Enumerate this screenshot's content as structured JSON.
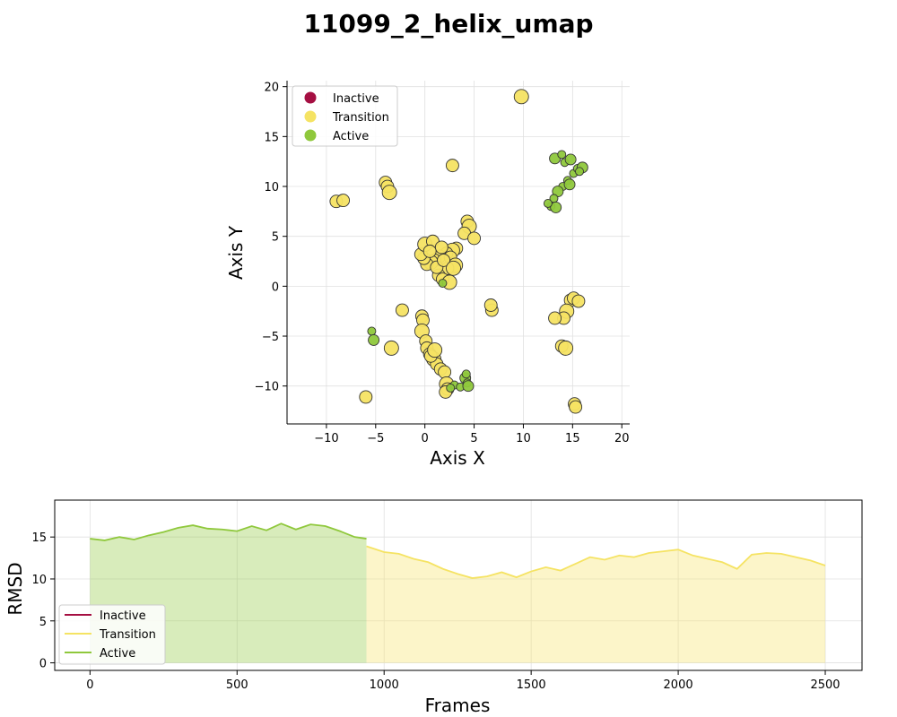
{
  "title": "11099_2_helix_umap",
  "colors": {
    "inactive": "#a50f42",
    "transition": "#f5e363",
    "active": "#8fc83c"
  },
  "chart_data": [
    {
      "type": "scatter",
      "xlabel": "Axis X",
      "ylabel": "Axis Y",
      "xlim": [
        -14,
        20.8
      ],
      "ylim": [
        -13.8,
        20.6
      ],
      "xticks": [
        -10,
        -5,
        0,
        5,
        10,
        15,
        20
      ],
      "yticks": [
        -10,
        -5,
        0,
        5,
        10,
        15,
        20
      ],
      "grid": true,
      "legend_position": "top-left",
      "legend": [
        "Inactive",
        "Transition",
        "Active"
      ],
      "series": [
        {
          "name": "Inactive",
          "points": []
        },
        {
          "name": "Transition",
          "points": [
            [
              9.8,
              19.0
            ],
            [
              2.8,
              12.1
            ],
            [
              -4,
              10.4
            ],
            [
              -3.8,
              10.0
            ],
            [
              -3.6,
              9.4
            ],
            [
              -9,
              8.5
            ],
            [
              -8.3,
              8.6
            ],
            [
              4.3,
              6.5
            ],
            [
              4.5,
              6.0
            ],
            [
              4.0,
              5.3
            ],
            [
              5.0,
              4.8
            ],
            [
              3.2,
              3.8
            ],
            [
              2.8,
              3.6
            ],
            [
              2.2,
              3.3
            ],
            [
              1.5,
              3.0
            ],
            [
              1.0,
              2.6
            ],
            [
              0.6,
              2.4
            ],
            [
              0.2,
              2.2
            ],
            [
              -0.1,
              2.8
            ],
            [
              -0.4,
              3.2
            ],
            [
              0.0,
              4.2
            ],
            [
              0.8,
              4.5
            ],
            [
              1.7,
              3.9
            ],
            [
              2.6,
              2.9
            ],
            [
              3.1,
              2.1
            ],
            [
              2.3,
              1.8
            ],
            [
              1.4,
              1.1
            ],
            [
              1.8,
              0.7
            ],
            [
              2.5,
              0.4
            ],
            [
              1.2,
              1.9
            ],
            [
              0.5,
              3.5
            ],
            [
              1.9,
              2.6
            ],
            [
              2.9,
              1.8
            ],
            [
              -2.3,
              -2.4
            ],
            [
              6.8,
              -2.4
            ],
            [
              6.7,
              -1.9
            ],
            [
              -3.4,
              -6.2
            ],
            [
              -6.0,
              -11.1
            ],
            [
              -0.3,
              -3.0
            ],
            [
              -0.2,
              -3.4
            ],
            [
              -0.3,
              -4.5
            ],
            [
              0.1,
              -5.5
            ],
            [
              0.2,
              -6.2
            ],
            [
              0.5,
              -6.8
            ],
            [
              0.9,
              -7.3
            ],
            [
              1.2,
              -7.8
            ],
            [
              1.6,
              -8.3
            ],
            [
              2.0,
              -8.6
            ],
            [
              2.2,
              -9.8
            ],
            [
              2.3,
              -10.3
            ],
            [
              2.1,
              -10.6
            ],
            [
              0.6,
              -7.0
            ],
            [
              1.0,
              -6.4
            ],
            [
              14.8,
              -1.4
            ],
            [
              15.1,
              -1.2
            ],
            [
              15.6,
              -1.5
            ],
            [
              14.4,
              -2.5
            ],
            [
              14.1,
              -3.2
            ],
            [
              13.2,
              -3.2
            ],
            [
              13.9,
              -6.0
            ],
            [
              14.3,
              -6.2
            ],
            [
              15.2,
              -11.8
            ],
            [
              15.3,
              -12.1
            ]
          ]
        },
        {
          "name": "Active",
          "points": [
            [
              13.2,
              12.8
            ],
            [
              13.9,
              13.2
            ],
            [
              14.2,
              12.4
            ],
            [
              14.8,
              12.7
            ],
            [
              15.1,
              11.3
            ],
            [
              15.5,
              11.8
            ],
            [
              16.0,
              11.9
            ],
            [
              14.5,
              10.6
            ],
            [
              14.0,
              10.0
            ],
            [
              13.5,
              9.5
            ],
            [
              13.1,
              8.8
            ],
            [
              12.8,
              8.0
            ],
            [
              13.3,
              7.9
            ],
            [
              12.5,
              8.3
            ],
            [
              15.7,
              11.5
            ],
            [
              14.7,
              10.2
            ],
            [
              1.8,
              0.3
            ],
            [
              -5.4,
              -4.5
            ],
            [
              -5.2,
              -5.4
            ],
            [
              3.0,
              -9.9
            ],
            [
              3.6,
              -10.1
            ],
            [
              4.1,
              -9.2
            ],
            [
              4.2,
              -8.8
            ],
            [
              4.3,
              -9.7
            ],
            [
              4.4,
              -10.0
            ],
            [
              2.6,
              -10.2
            ]
          ]
        }
      ]
    },
    {
      "type": "line",
      "xlabel": "Frames",
      "ylabel": "RMSD",
      "xlim": [
        -120,
        2625
      ],
      "ylim": [
        -0.9,
        19.4
      ],
      "xticks": [
        0,
        500,
        1000,
        1500,
        2000,
        2500
      ],
      "yticks": [
        0,
        5,
        10,
        15
      ],
      "grid": true,
      "legend_position": "bottom-left",
      "legend": [
        "Inactive",
        "Transition",
        "Active"
      ],
      "segments": [
        {
          "state": "Active",
          "x": [
            0,
            50,
            100,
            150,
            200,
            250,
            300,
            350,
            400,
            450,
            500,
            550,
            600,
            650,
            700,
            750,
            800,
            850,
            900,
            940
          ],
          "y": [
            14.8,
            14.6,
            15.0,
            14.7,
            15.2,
            15.6,
            16.1,
            16.4,
            16.0,
            15.9,
            15.7,
            16.3,
            15.8,
            16.6,
            15.9,
            16.5,
            16.3,
            15.7,
            15.0,
            14.8
          ]
        },
        {
          "state": "Transition",
          "x": [
            940,
            1000,
            1050,
            1100,
            1150,
            1200,
            1250,
            1300,
            1350,
            1400,
            1450,
            1500,
            1550,
            1600,
            1650,
            1700,
            1750,
            1800,
            1850,
            1900,
            1950,
            2000,
            2050,
            2100,
            2150,
            2200,
            2250,
            2300,
            2350,
            2400,
            2450,
            2500
          ],
          "y": [
            13.9,
            13.2,
            13.0,
            12.4,
            12.0,
            11.2,
            10.6,
            10.1,
            10.3,
            10.8,
            10.2,
            10.9,
            11.4,
            11.0,
            11.8,
            12.6,
            12.3,
            12.8,
            12.6,
            13.1,
            13.3,
            13.5,
            12.8,
            12.4,
            12.0,
            11.2,
            12.9,
            13.1,
            13.0,
            12.6,
            12.2,
            11.6
          ]
        }
      ]
    }
  ]
}
